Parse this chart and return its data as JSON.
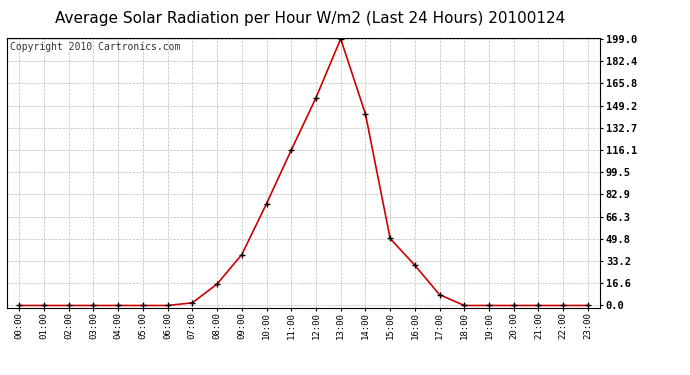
{
  "title": "Average Solar Radiation per Hour W/m2 (Last 24 Hours) 20100124",
  "copyright": "Copyright 2010 Cartronics.com",
  "hours": [
    "00:00",
    "01:00",
    "02:00",
    "03:00",
    "04:00",
    "05:00",
    "06:00",
    "07:00",
    "08:00",
    "09:00",
    "10:00",
    "11:00",
    "12:00",
    "13:00",
    "14:00",
    "15:00",
    "16:00",
    "17:00",
    "18:00",
    "19:00",
    "20:00",
    "21:00",
    "22:00",
    "23:00"
  ],
  "values": [
    0.0,
    0.0,
    0.0,
    0.0,
    0.0,
    0.0,
    0.0,
    2.0,
    16.0,
    38.0,
    76.0,
    116.0,
    155.0,
    199.0,
    143.0,
    50.0,
    30.0,
    8.0,
    0.0,
    0.0,
    0.0,
    0.0,
    0.0,
    0.0
  ],
  "ymax": 199.0,
  "yticks": [
    0.0,
    16.6,
    33.2,
    49.8,
    66.3,
    82.9,
    99.5,
    116.1,
    132.7,
    149.2,
    165.8,
    182.4,
    199.0
  ],
  "line_color": "#cc0000",
  "marker_color": "#000000",
  "background_color": "#ffffff",
  "grid_color": "#bbbbbb",
  "title_fontsize": 11,
  "copyright_fontsize": 7
}
